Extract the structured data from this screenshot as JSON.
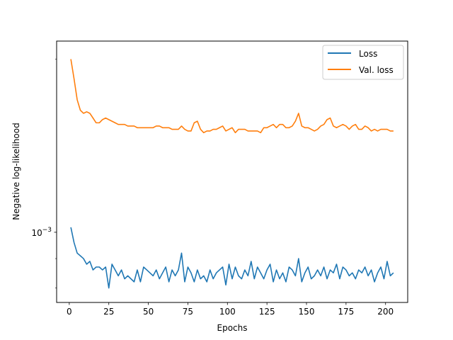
{
  "chart_data": {
    "type": "line",
    "xlabel": "Epochs",
    "ylabel": "Negative log-likelihood",
    "yscale": "log",
    "xlim": [
      -8,
      214
    ],
    "ylim": [
      0.000755,
      0.00215
    ],
    "xticks": [
      0,
      25,
      50,
      75,
      100,
      125,
      150,
      175,
      200
    ],
    "xtick_labels": [
      "0",
      "25",
      "50",
      "75",
      "100",
      "125",
      "150",
      "175",
      "200"
    ],
    "ytick_label_base": "10",
    "ytick_label_exp": "−3",
    "grid": false,
    "legend": {
      "placement": "top-right"
    },
    "series": [
      {
        "name": "Loss",
        "color": "#1f77b4",
        "x": [
          1,
          3,
          5,
          7,
          9,
          11,
          13,
          15,
          17,
          19,
          21,
          23,
          25,
          27,
          29,
          31,
          33,
          35,
          37,
          39,
          41,
          43,
          45,
          47,
          49,
          51,
          53,
          55,
          57,
          59,
          61,
          63,
          65,
          67,
          69,
          71,
          73,
          75,
          77,
          79,
          81,
          83,
          85,
          87,
          89,
          91,
          93,
          95,
          97,
          99,
          101,
          103,
          105,
          107,
          109,
          111,
          113,
          115,
          117,
          119,
          121,
          123,
          125,
          127,
          129,
          131,
          133,
          135,
          137,
          139,
          141,
          143,
          145,
          147,
          149,
          151,
          153,
          155,
          157,
          159,
          161,
          163,
          165,
          167,
          169,
          171,
          173,
          175,
          177,
          179,
          181,
          183,
          185,
          187,
          189,
          191,
          193,
          195,
          197,
          199,
          201,
          203,
          205
        ],
        "values": [
          0.00102,
          0.00096,
          0.00092,
          0.00091,
          0.0009,
          0.00088,
          0.00089,
          0.00086,
          0.00087,
          0.00087,
          0.00086,
          0.00087,
          0.0008,
          0.00088,
          0.00086,
          0.00084,
          0.00086,
          0.00083,
          0.00084,
          0.00083,
          0.00082,
          0.00086,
          0.00082,
          0.00087,
          0.00086,
          0.00085,
          0.00084,
          0.00086,
          0.00083,
          0.00085,
          0.00087,
          0.00082,
          0.00086,
          0.00084,
          0.00086,
          0.00092,
          0.00082,
          0.00087,
          0.00085,
          0.00082,
          0.00086,
          0.00083,
          0.00084,
          0.00082,
          0.00086,
          0.00083,
          0.00085,
          0.00086,
          0.00087,
          0.00081,
          0.00088,
          0.00083,
          0.00087,
          0.00084,
          0.00083,
          0.00086,
          0.00084,
          0.00089,
          0.00083,
          0.00087,
          0.00085,
          0.00083,
          0.00086,
          0.00088,
          0.00082,
          0.00086,
          0.00083,
          0.00085,
          0.00082,
          0.00087,
          0.00086,
          0.00084,
          0.0009,
          0.00082,
          0.00085,
          0.00087,
          0.00083,
          0.00084,
          0.00086,
          0.00084,
          0.00087,
          0.00083,
          0.00086,
          0.00085,
          0.00088,
          0.00083,
          0.00087,
          0.00086,
          0.00084,
          0.00085,
          0.00083,
          0.00086,
          0.00085,
          0.00087,
          0.00084,
          0.00086,
          0.00082,
          0.00085,
          0.00087,
          0.00083,
          0.00089,
          0.00084,
          0.00085
        ]
      },
      {
        "name": "Val. loss",
        "color": "#ff7f0e",
        "x": [
          1,
          3,
          5,
          7,
          9,
          11,
          13,
          15,
          17,
          19,
          21,
          23,
          25,
          27,
          29,
          31,
          33,
          35,
          37,
          39,
          41,
          43,
          45,
          47,
          49,
          51,
          53,
          55,
          57,
          59,
          61,
          63,
          65,
          67,
          69,
          71,
          73,
          75,
          77,
          79,
          81,
          83,
          85,
          87,
          89,
          91,
          93,
          95,
          97,
          99,
          101,
          103,
          105,
          107,
          109,
          111,
          113,
          115,
          117,
          119,
          121,
          123,
          125,
          127,
          129,
          131,
          133,
          135,
          137,
          139,
          141,
          143,
          145,
          147,
          149,
          151,
          153,
          155,
          157,
          159,
          161,
          163,
          165,
          167,
          169,
          171,
          173,
          175,
          177,
          179,
          181,
          183,
          185,
          187,
          189,
          191,
          193,
          195,
          197,
          199,
          201,
          203,
          205
        ],
        "values": [
          0.002,
          0.00185,
          0.0017,
          0.00163,
          0.00161,
          0.00162,
          0.00161,
          0.00158,
          0.00155,
          0.00155,
          0.00157,
          0.00158,
          0.00157,
          0.00156,
          0.00155,
          0.00154,
          0.00154,
          0.00154,
          0.00153,
          0.00153,
          0.00153,
          0.00152,
          0.00152,
          0.00152,
          0.00152,
          0.00152,
          0.00152,
          0.00153,
          0.00153,
          0.00152,
          0.00152,
          0.00152,
          0.00151,
          0.00151,
          0.00151,
          0.00153,
          0.00151,
          0.0015,
          0.0015,
          0.00155,
          0.00156,
          0.00151,
          0.00149,
          0.0015,
          0.0015,
          0.00151,
          0.00151,
          0.00152,
          0.00153,
          0.0015,
          0.00151,
          0.00152,
          0.00149,
          0.00151,
          0.00151,
          0.00151,
          0.0015,
          0.0015,
          0.0015,
          0.0015,
          0.00149,
          0.00152,
          0.00152,
          0.00153,
          0.00154,
          0.00152,
          0.00154,
          0.00154,
          0.00152,
          0.00152,
          0.00153,
          0.00156,
          0.00161,
          0.00153,
          0.00152,
          0.00152,
          0.00151,
          0.0015,
          0.00151,
          0.00153,
          0.00154,
          0.00157,
          0.00158,
          0.00153,
          0.00152,
          0.00153,
          0.00154,
          0.00153,
          0.00151,
          0.00153,
          0.00154,
          0.00151,
          0.00151,
          0.00153,
          0.00152,
          0.0015,
          0.00151,
          0.0015,
          0.00151,
          0.00151,
          0.00151,
          0.0015,
          0.0015
        ]
      }
    ]
  }
}
